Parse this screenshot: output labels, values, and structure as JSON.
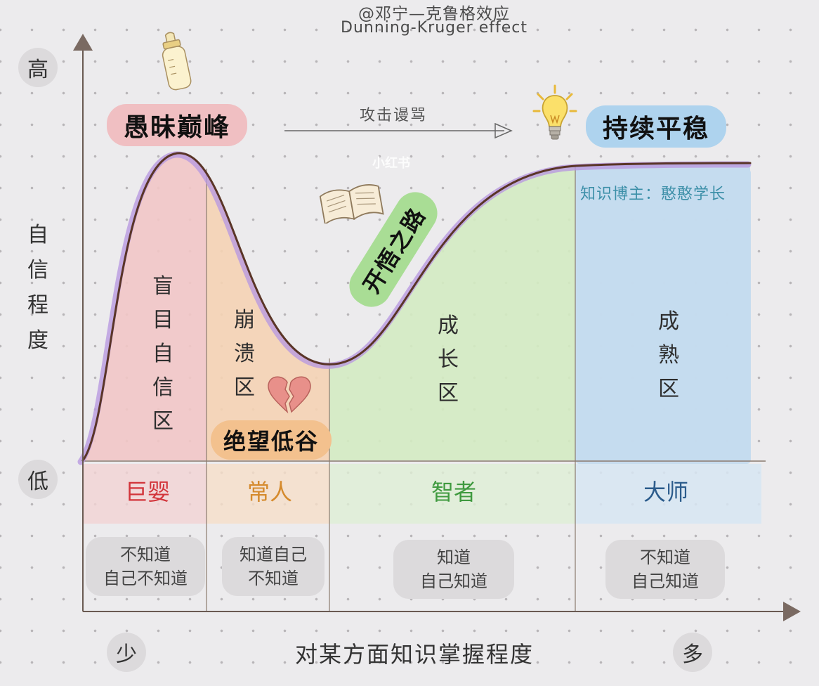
{
  "header": {
    "line1": "@邓宁—克鲁格效应",
    "line2": "Dunning-Kruger effect"
  },
  "axes": {
    "y_high": "高",
    "y_low": "低",
    "y_label": [
      "自",
      "信",
      "程",
      "度"
    ],
    "x_low": "少",
    "x_high": "多",
    "x_label": "对某方面知识掌握程度"
  },
  "peaks": {
    "peak_label": "愚昧巅峰",
    "valley_label": "绝望低谷",
    "path_label": "开悟之路",
    "plateau_label": "持续平稳",
    "arrow_text": "攻击谩骂"
  },
  "watermark": "小红书",
  "author": "知识博主：憨憨学长",
  "zones": [
    {
      "chars": [
        "盲",
        "目",
        "自",
        "信",
        "区"
      ],
      "role": "巨婴",
      "role_color": "#d2343a",
      "knowledge": [
        "不知道",
        "自己不知道"
      ],
      "fill": "#f2c7c7"
    },
    {
      "chars": [
        "崩",
        "溃",
        "区"
      ],
      "role": "常人",
      "role_color": "#d58a2c",
      "knowledge": [
        "知道自己",
        "不知道"
      ],
      "fill": "#f5d3b4"
    },
    {
      "chars": [
        "成",
        "长",
        "区"
      ],
      "role": "智者",
      "role_color": "#3f9a3f",
      "knowledge": [
        "知道",
        "自己知道"
      ],
      "fill": "#d4ebc2"
    },
    {
      "chars": [
        "成",
        "熟",
        "区"
      ],
      "role": "大师",
      "role_color": "#2c5c8c",
      "knowledge": [
        "不知道",
        "自己知道"
      ],
      "fill": "#c5dbee"
    }
  ],
  "colors": {
    "pink": "#f2c7c7",
    "peach": "#f5d3b4",
    "green": "#d4ebc2",
    "blue": "#c5dbee",
    "curve": "#5a3527",
    "curve_glow": "#b99ae0",
    "pill_pink": "#f0bfc2",
    "pill_orange": "#f3c18e",
    "pill_green": "#a9dd95",
    "pill_blue": "#aed3ee",
    "author": "#3c8fa8"
  },
  "icons": [
    "baby-bottle-icon",
    "open-book-icon",
    "lightbulb-icon",
    "broken-heart-icon"
  ]
}
